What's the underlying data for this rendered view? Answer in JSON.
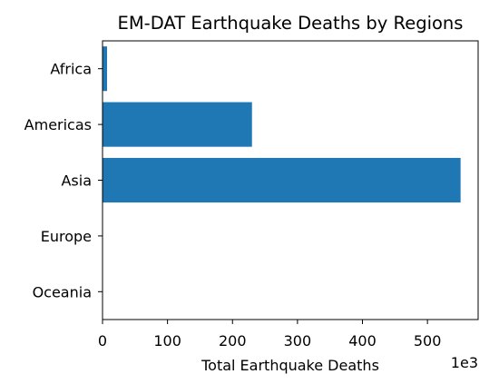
{
  "chart_data": {
    "type": "bar",
    "orientation": "horizontal",
    "title": "EM-DAT Earthquake Deaths by Regions",
    "xlabel": "Total Earthquake Deaths",
    "ylabel": "",
    "axis_offset_label": "1e3",
    "categories": [
      "Africa",
      "Americas",
      "Asia",
      "Europe",
      "Oceania"
    ],
    "values": [
      7,
      230,
      551,
      0.5,
      0.2
    ],
    "x_ticks": [
      0,
      100,
      200,
      300,
      400,
      500
    ],
    "xlim": [
      0,
      578
    ],
    "grid": false,
    "bar_color": "#1f77b4"
  }
}
